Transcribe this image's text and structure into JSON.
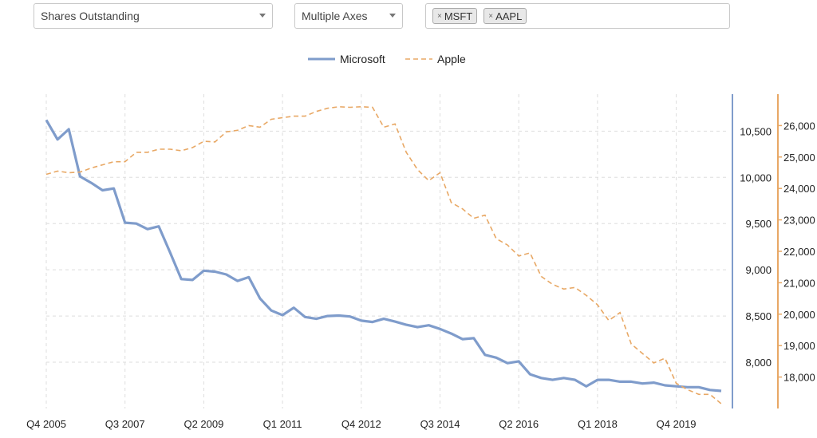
{
  "controls": {
    "metric": "Shares Outstanding",
    "axes_mode": "Multiple Axes",
    "tickers": [
      "MSFT",
      "AAPL"
    ],
    "remove_glyph": "×"
  },
  "colors": {
    "msft": "#7f9ccb",
    "aapl": "#e8a865",
    "grid": "#dddddd"
  },
  "chart_data": {
    "type": "line",
    "title": "",
    "legend": {
      "placement": "top-center",
      "entries": [
        "Microsoft",
        "Apple"
      ]
    },
    "grid": true,
    "x": {
      "start": "Q4 2005",
      "ticks": [
        "Q4 2005",
        "Q3 2007",
        "Q2 2009",
        "Q1 2011",
        "Q4 2012",
        "Q3 2014",
        "Q2 2016",
        "Q1 2018",
        "Q4 2019"
      ]
    },
    "axes": {
      "left": {
        "label": "",
        "range": [
          7500,
          10900
        ],
        "ticks": [
          8000,
          8500,
          9000,
          9500,
          10000,
          10500
        ]
      },
      "right": {
        "label": "",
        "range": [
          17000,
          27000
        ],
        "ticks": [
          18000,
          19000,
          20000,
          21000,
          22000,
          23000,
          24000,
          25000,
          26000
        ]
      }
    },
    "series": [
      {
        "name": "Microsoft",
        "axis": "left",
        "style": "solid",
        "values": [
          10620,
          10410,
          10520,
          10010,
          9940,
          9860,
          9880,
          9510,
          9500,
          9440,
          9470,
          9190,
          8900,
          8890,
          8990,
          8980,
          8950,
          8880,
          8920,
          8690,
          8560,
          8510,
          8590,
          8490,
          8470,
          8500,
          8505,
          8495,
          8450,
          8435,
          8470,
          8440,
          8405,
          8380,
          8400,
          8360,
          8310,
          8250,
          8260,
          8080,
          8050,
          7990,
          8010,
          7870,
          7830,
          7810,
          7830,
          7810,
          7740,
          7810,
          7810,
          7790,
          7790,
          7770,
          7780,
          7750,
          7740,
          7730,
          7730,
          7700,
          7690
        ]
      },
      {
        "name": "Apple",
        "axis": "right",
        "style": "dashed",
        "values": [
          24450,
          24550,
          24500,
          24520,
          24650,
          24750,
          24850,
          24850,
          25150,
          25150,
          25250,
          25250,
          25200,
          25300,
          25500,
          25480,
          25800,
          25850,
          26000,
          25950,
          26200,
          26250,
          26300,
          26300,
          26450,
          26550,
          26600,
          26580,
          26600,
          26580,
          25950,
          26050,
          25150,
          24600,
          24250,
          24500,
          23550,
          23350,
          23050,
          23150,
          22400,
          22200,
          21850,
          21950,
          21200,
          20950,
          20800,
          20850,
          20600,
          20300,
          19800,
          20050,
          19050,
          18750,
          18450,
          18600,
          17800,
          17600,
          17450,
          17450,
          17150
        ]
      }
    ]
  }
}
